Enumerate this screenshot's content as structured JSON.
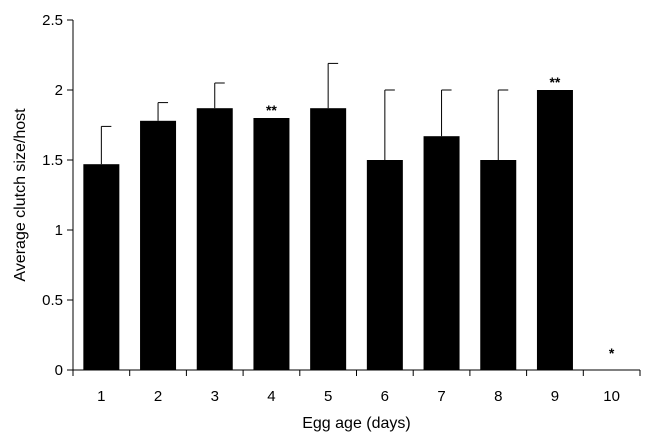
{
  "chart_data": {
    "type": "bar",
    "title": "",
    "xlabel": "Egg age (days)",
    "ylabel": "Average clutch size/host",
    "categories": [
      "1",
      "2",
      "3",
      "4",
      "5",
      "6",
      "7",
      "8",
      "9",
      "10"
    ],
    "values": [
      1.47,
      1.78,
      1.87,
      1.8,
      1.87,
      1.5,
      1.67,
      1.5,
      2.0,
      0
    ],
    "error_upper": [
      0.27,
      0.13,
      0.18,
      0,
      0.32,
      0.5,
      0.33,
      0.5,
      0,
      0
    ],
    "annotations": [
      "",
      "",
      "",
      "**",
      "",
      "",
      "",
      "",
      "**",
      "*"
    ],
    "ylim": [
      0,
      2.5
    ],
    "yticks": [
      "0",
      "0.5",
      "1",
      "1.5",
      "2",
      "2.5"
    ],
    "grid": false,
    "bar_color": "#000000"
  }
}
